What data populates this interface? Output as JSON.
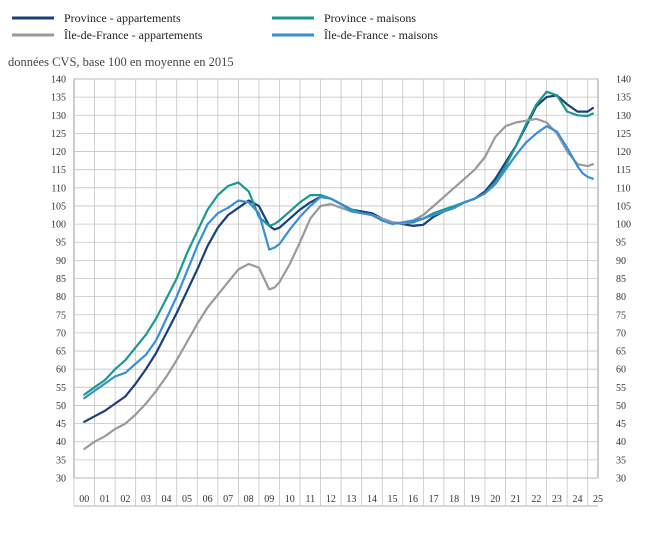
{
  "chart_data": {
    "type": "line",
    "subtitle": "données CVS, base 100 en moyenne en 2015",
    "ylim": [
      30,
      140
    ],
    "yticks": [
      30,
      35,
      40,
      45,
      50,
      55,
      60,
      65,
      70,
      75,
      80,
      85,
      90,
      95,
      100,
      105,
      110,
      115,
      120,
      125,
      130,
      135,
      140
    ],
    "xlim": [
      2000,
      2025
    ],
    "xtick_labels": [
      "00",
      "01",
      "02",
      "03",
      "04",
      "05",
      "06",
      "07",
      "08",
      "09",
      "10",
      "11",
      "12",
      "13",
      "14",
      "15",
      "16",
      "17",
      "18",
      "19",
      "20",
      "21",
      "22",
      "23",
      "24",
      "25"
    ],
    "grid": true,
    "legend_position": "top",
    "series": [
      {
        "name": "Province - appartements",
        "color": "#1c3f7a",
        "x": [
          2000.0,
          2000.5,
          2001.0,
          2001.5,
          2002.0,
          2002.5,
          2003.0,
          2003.5,
          2004.0,
          2004.5,
          2005.0,
          2005.5,
          2006.0,
          2006.5,
          2007.0,
          2007.5,
          2008.0,
          2008.5,
          2009.0,
          2009.25,
          2009.5,
          2010.0,
          2010.5,
          2011.0,
          2011.5,
          2012.0,
          2012.5,
          2013.0,
          2013.5,
          2014.0,
          2014.5,
          2015.0,
          2015.5,
          2016.0,
          2016.5,
          2017.0,
          2017.5,
          2018.0,
          2018.5,
          2019.0,
          2019.5,
          2020.0,
          2020.5,
          2021.0,
          2021.5,
          2022.0,
          2022.5,
          2023.0,
          2023.5,
          2024.0,
          2024.5,
          2024.75
        ],
        "y": [
          45.5,
          47,
          48.5,
          50.5,
          52.5,
          56,
          60,
          64.5,
          70,
          75.5,
          81.5,
          87.5,
          94,
          99,
          102.5,
          104.5,
          106.5,
          105,
          99.5,
          98.5,
          99,
          101.5,
          104,
          106,
          107.5,
          107,
          105.5,
          104,
          103.5,
          103,
          101.5,
          100.5,
          100,
          99.5,
          99.8,
          102,
          103.5,
          104.5,
          106,
          107,
          109,
          112.5,
          117,
          121.5,
          127,
          132.5,
          135,
          135.5,
          133,
          131,
          131,
          132
        ]
      },
      {
        "name": "Province - maisons",
        "color": "#1a9a8c",
        "x": [
          2000.0,
          2000.5,
          2001.0,
          2001.5,
          2002.0,
          2002.5,
          2003.0,
          2003.5,
          2004.0,
          2004.5,
          2005.0,
          2005.5,
          2006.0,
          2006.5,
          2007.0,
          2007.5,
          2008.0,
          2008.5,
          2009.0,
          2009.25,
          2009.5,
          2010.0,
          2010.5,
          2011.0,
          2011.5,
          2012.0,
          2012.5,
          2013.0,
          2013.5,
          2014.0,
          2014.5,
          2015.0,
          2015.5,
          2016.0,
          2016.5,
          2017.0,
          2017.5,
          2018.0,
          2018.5,
          2019.0,
          2019.5,
          2020.0,
          2020.5,
          2021.0,
          2021.5,
          2022.0,
          2022.5,
          2023.0,
          2023.5,
          2024.0,
          2024.5,
          2024.75
        ],
        "y": [
          53,
          55,
          57,
          60,
          62.5,
          66,
          69.5,
          74,
          79.5,
          85,
          92,
          98,
          104,
          108,
          110.5,
          111.5,
          109,
          102,
          99.5,
          100,
          101,
          103.5,
          106,
          108,
          108,
          107,
          105.5,
          104,
          103,
          102.5,
          101,
          100.5,
          100.2,
          100.5,
          101.5,
          103,
          104,
          105,
          106,
          107,
          108.5,
          111.5,
          116,
          121.5,
          127.5,
          133,
          136.5,
          135.5,
          131,
          130,
          129.8,
          130.5
        ]
      },
      {
        "name": "Île-de-France - appartements",
        "color": "#9a9a9a",
        "x": [
          2000.0,
          2000.5,
          2001.0,
          2001.5,
          2002.0,
          2002.5,
          2003.0,
          2003.5,
          2004.0,
          2004.5,
          2005.0,
          2005.5,
          2006.0,
          2006.5,
          2007.0,
          2007.5,
          2008.0,
          2008.5,
          2009.0,
          2009.25,
          2009.5,
          2010.0,
          2010.5,
          2011.0,
          2011.5,
          2012.0,
          2012.5,
          2013.0,
          2013.5,
          2014.0,
          2014.5,
          2015.0,
          2015.5,
          2016.0,
          2016.5,
          2017.0,
          2017.5,
          2018.0,
          2018.5,
          2019.0,
          2019.5,
          2020.0,
          2020.5,
          2021.0,
          2021.5,
          2022.0,
          2022.5,
          2023.0,
          2023.5,
          2024.0,
          2024.5,
          2024.75
        ],
        "y": [
          38,
          40,
          41.5,
          43.5,
          45,
          47.5,
          50.5,
          54,
          58,
          62.5,
          67.5,
          72.5,
          77,
          80.5,
          84,
          87.5,
          89,
          88,
          82,
          82.5,
          84,
          89,
          95,
          101.5,
          105,
          105.5,
          104.5,
          103.5,
          103,
          102.5,
          101.5,
          100.5,
          100.2,
          101,
          102.5,
          105,
          107.5,
          110,
          112.5,
          115,
          118.5,
          124,
          127,
          128,
          128.5,
          129,
          128,
          125,
          120,
          116.5,
          116,
          116.5
        ]
      },
      {
        "name": "Île-de-France - maisons",
        "color": "#3a8ed8",
        "x": [
          2000.0,
          2000.5,
          2001.0,
          2001.5,
          2002.0,
          2002.5,
          2003.0,
          2003.5,
          2004.0,
          2004.5,
          2005.0,
          2005.5,
          2006.0,
          2006.5,
          2007.0,
          2007.5,
          2008.0,
          2008.5,
          2009.0,
          2009.25,
          2009.5,
          2010.0,
          2010.5,
          2011.0,
          2011.5,
          2012.0,
          2012.5,
          2013.0,
          2013.5,
          2014.0,
          2014.5,
          2015.0,
          2015.5,
          2016.0,
          2016.5,
          2017.0,
          2017.5,
          2018.0,
          2018.5,
          2019.0,
          2019.5,
          2020.0,
          2020.5,
          2021.0,
          2021.5,
          2022.0,
          2022.5,
          2023.0,
          2023.5,
          2024.0,
          2024.25,
          2024.5,
          2024.75
        ],
        "y": [
          52,
          54,
          56,
          58,
          59,
          61.5,
          64,
          68,
          74,
          80,
          87,
          94,
          100,
          103,
          104.5,
          106.5,
          106,
          103,
          93,
          93.5,
          94.5,
          98.5,
          102,
          105,
          107.5,
          107,
          105.5,
          103.5,
          103,
          102.5,
          101,
          100,
          100.5,
          101,
          101.5,
          102.5,
          103.5,
          104.5,
          106,
          107,
          108.5,
          111,
          115,
          119,
          122.5,
          125,
          127,
          125.5,
          121,
          116,
          114,
          113,
          112.5
        ]
      }
    ]
  }
}
